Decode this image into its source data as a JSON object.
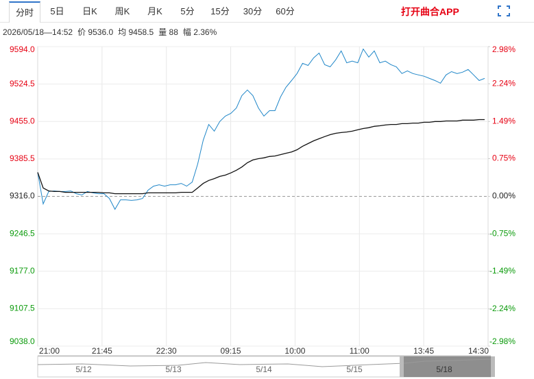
{
  "tabs": [
    "分时",
    "5日",
    "日K",
    "周K",
    "月K",
    "5分",
    "15分",
    "30分",
    "60分"
  ],
  "app_link": "打开曲合APP",
  "info": [
    "2026/05/18—14:52",
    "价 9536.0",
    "均 9458.5",
    "量 88",
    "幅 2.36%"
  ],
  "chart_data": {
    "type": "line",
    "x_labels": [
      "21:00",
      "21:45",
      "22:30",
      "09:15",
      "10:00",
      "11:00",
      "13:45",
      "14:30"
    ],
    "ylim": [
      9038,
      9594
    ],
    "yticks": [
      {
        "value": 9594,
        "label": "9594.0"
      },
      9524.5,
      {
        "value": 9455,
        "label": "9455.0"
      },
      9385.5,
      {
        "value": 9316,
        "label": "9316.0"
      },
      9246.5,
      {
        "value": 9177,
        "label": "9177.0"
      },
      9107.5,
      {
        "value": 9038,
        "label": "9038.0"
      }
    ],
    "y2lim": [
      -2.98,
      2.98
    ],
    "y2ticks": [
      {
        "value": 2.98,
        "label": "2.98%"
      },
      {
        "value": 2.24,
        "label": "2.24%"
      },
      {
        "value": 1.49,
        "label": "1.49%"
      },
      {
        "value": 0.75,
        "label": "0.75%"
      },
      {
        "value": 0,
        "label": "0.00%"
      },
      {
        "value": -0.75,
        "label": "-0.75%"
      },
      {
        "value": -1.49,
        "label": "-1.49%"
      },
      {
        "value": -2.24,
        "label": "-2.24%"
      },
      {
        "value": -2.98,
        "label": "-2.98%"
      }
    ],
    "base": 9316,
    "up_color": "#e60012",
    "down_color": "#0a9a0a",
    "grid": true,
    "series": [
      {
        "color": "#1f86c8",
        "values": [
          9360.5,
          9302.0,
          9325.0,
          9326.0,
          9325.0,
          9325.0,
          9326.0,
          9321.0,
          9318.5,
          9325.0,
          9322.5,
          9321.0,
          9321.0,
          9312.0,
          9292.0,
          9309.5,
          9309.5,
          9308.5,
          9309.5,
          9312.0,
          9327.5,
          9335.0,
          9337.5,
          9335.0,
          9337.5,
          9337.5,
          9340.0,
          9335.0,
          9342.5,
          9376.0,
          9420.5,
          9449.5,
          9437.0,
          9455.0,
          9465.0,
          9470.0,
          9480.0,
          9503.0,
          9513.5,
          9503.0,
          9480.0,
          9465.0,
          9475.0,
          9475.0,
          9500.5,
          9518.5,
          9531.0,
          9544.0,
          9563.0,
          9559.0,
          9573.0,
          9582.0,
          9560.5,
          9556.5,
          9569.5,
          9586.0,
          9564.0,
          9567.0,
          9564.0,
          9589.5,
          9574.5,
          9586.0,
          9564.0,
          9567.0,
          9560.5,
          9556.5,
          9544.0,
          9549.0,
          9544.0,
          9541.5,
          9539.0,
          9535.0,
          9531.0,
          9526.0,
          9541.5,
          9547.5,
          9544.0,
          9546.5,
          9551.5,
          9541.5,
          9531.0,
          9535.0
        ]
      },
      {
        "color": "#111111",
        "values": [
          9360.5,
          9331.5,
          9326.0,
          9325.0,
          9325.0,
          9323.5,
          9323.5,
          9323.5,
          9323.5,
          9323.5,
          9323.5,
          9323.5,
          9322.5,
          9322.5,
          9321.0,
          9321.0,
          9321.0,
          9321.0,
          9321.0,
          9321.0,
          9322.5,
          9322.5,
          9322.5,
          9322.5,
          9322.5,
          9322.5,
          9323.5,
          9323.5,
          9323.5,
          9331.5,
          9340.0,
          9345.5,
          9349.0,
          9353.0,
          9355.5,
          9359.5,
          9364.5,
          9370.5,
          9378.5,
          9383.5,
          9386.0,
          9387.5,
          9390.0,
          9391.0,
          9393.5,
          9396.0,
          9398.5,
          9402.5,
          9409.0,
          9414.0,
          9419.0,
          9423.0,
          9427.0,
          9430.5,
          9433.0,
          9434.5,
          9435.5,
          9437.0,
          9439.5,
          9442.0,
          9443.5,
          9446.0,
          9447.0,
          9448.5,
          9449.5,
          9449.5,
          9451.0,
          9451.0,
          9452.0,
          9452.0,
          9453.5,
          9453.5,
          9455.0,
          9455.0,
          9456.0,
          9456.0,
          9456.0,
          9457.5,
          9457.5,
          9457.5,
          9458.5,
          9458.5
        ]
      }
    ]
  },
  "navigator": [
    "5/12",
    "5/13",
    "5/14",
    "5/15",
    "5/18"
  ]
}
